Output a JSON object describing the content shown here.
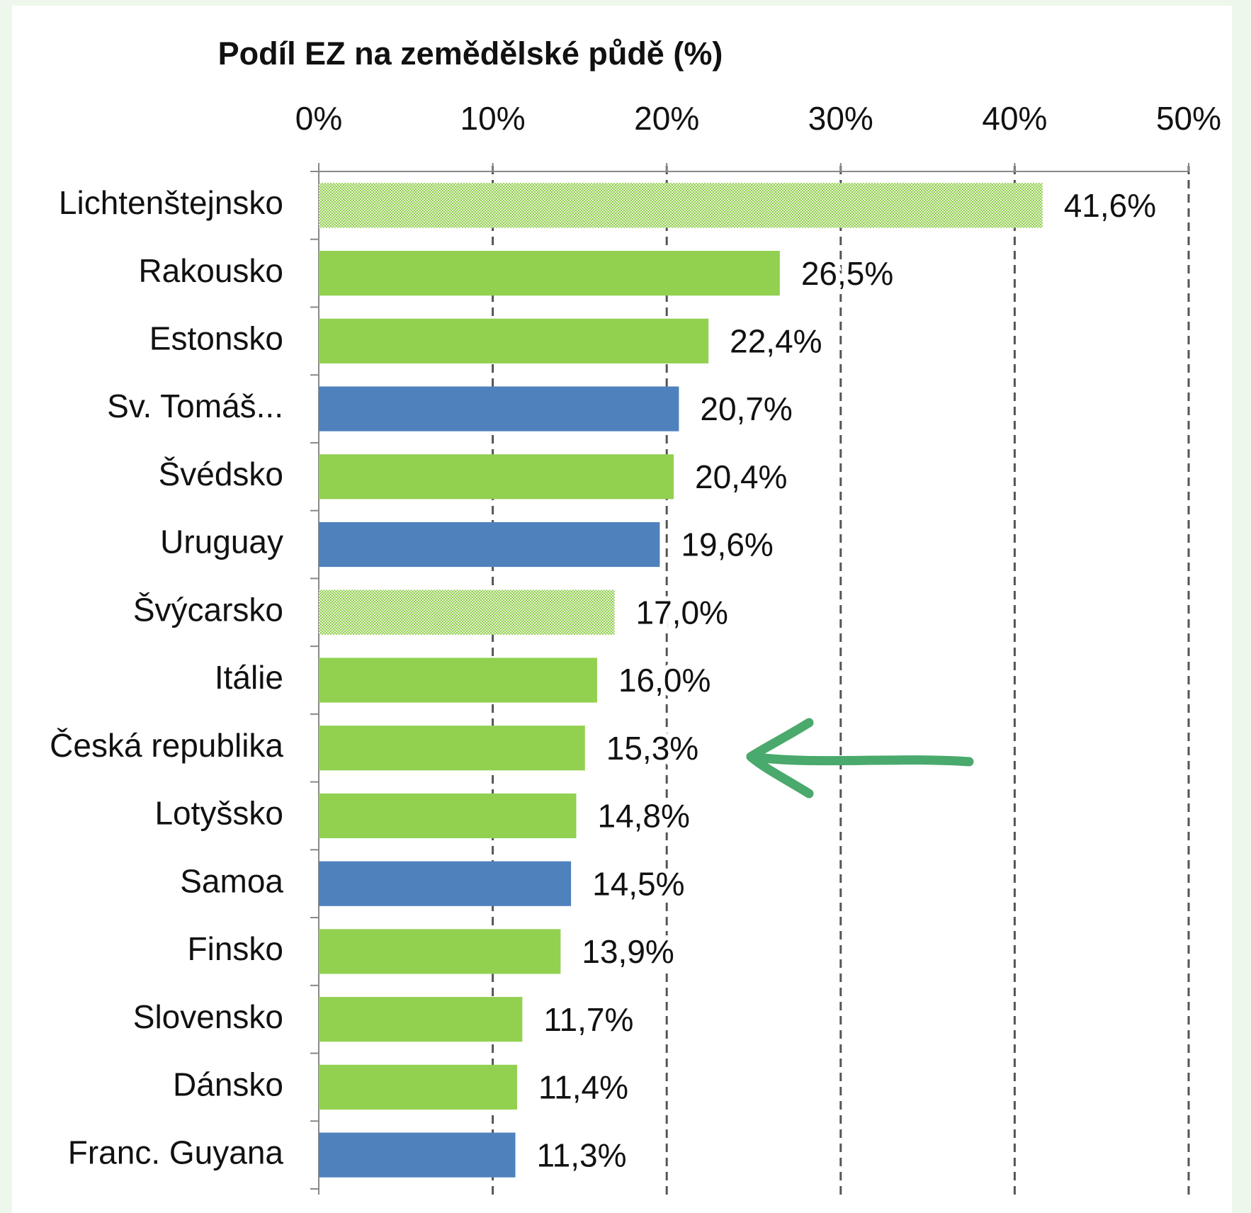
{
  "chart_data": {
    "type": "hbar",
    "title": "Podíl EZ na zemědělské půdě (%)",
    "categories": [
      "Lichtenštejnsko",
      "Rakousko",
      "Estonsko",
      "Sv. Tomáš...",
      "Švédsko",
      "Uruguay",
      "Švýcarsko",
      "Itálie",
      "Česká republika",
      "Lotyšsko",
      "Samoa",
      "Finsko",
      "Slovensko",
      "Dánsko",
      "Franc. Guyana"
    ],
    "values": [
      41.6,
      26.5,
      22.4,
      20.7,
      20.4,
      19.6,
      17.0,
      16.0,
      15.3,
      14.8,
      14.5,
      13.9,
      11.7,
      11.4,
      11.3
    ],
    "value_labels": [
      "41,6%",
      "26,5%",
      "22,4%",
      "20,7%",
      "20,4%",
      "19,6%",
      "17,0%",
      "16,0%",
      "15,3%",
      "14,8%",
      "14,5%",
      "13,9%",
      "11,7%",
      "11,4%",
      "11,3%"
    ],
    "colors": [
      "#92d050",
      "#92d050",
      "#92d050",
      "#4f81bd",
      "#92d050",
      "#4f81bd",
      "#92d050",
      "#92d050",
      "#92d050",
      "#92d050",
      "#4f81bd",
      "#92d050",
      "#92d050",
      "#92d050",
      "#4f81bd"
    ],
    "fill_styles": [
      "dotted",
      "solid",
      "solid",
      "solid",
      "solid",
      "solid",
      "dotted",
      "solid",
      "solid",
      "solid",
      "solid",
      "solid",
      "solid",
      "solid",
      "solid"
    ],
    "xlim": [
      0,
      50
    ],
    "xticks": [
      {
        "value": 0,
        "label": "0%"
      },
      {
        "value": 10,
        "label": "10%"
      },
      {
        "value": 20,
        "label": "20%"
      },
      {
        "value": 30,
        "label": "30%"
      },
      {
        "value": 40,
        "label": "40%"
      },
      {
        "value": 50,
        "label": "50%"
      }
    ],
    "grid": true
  }
}
